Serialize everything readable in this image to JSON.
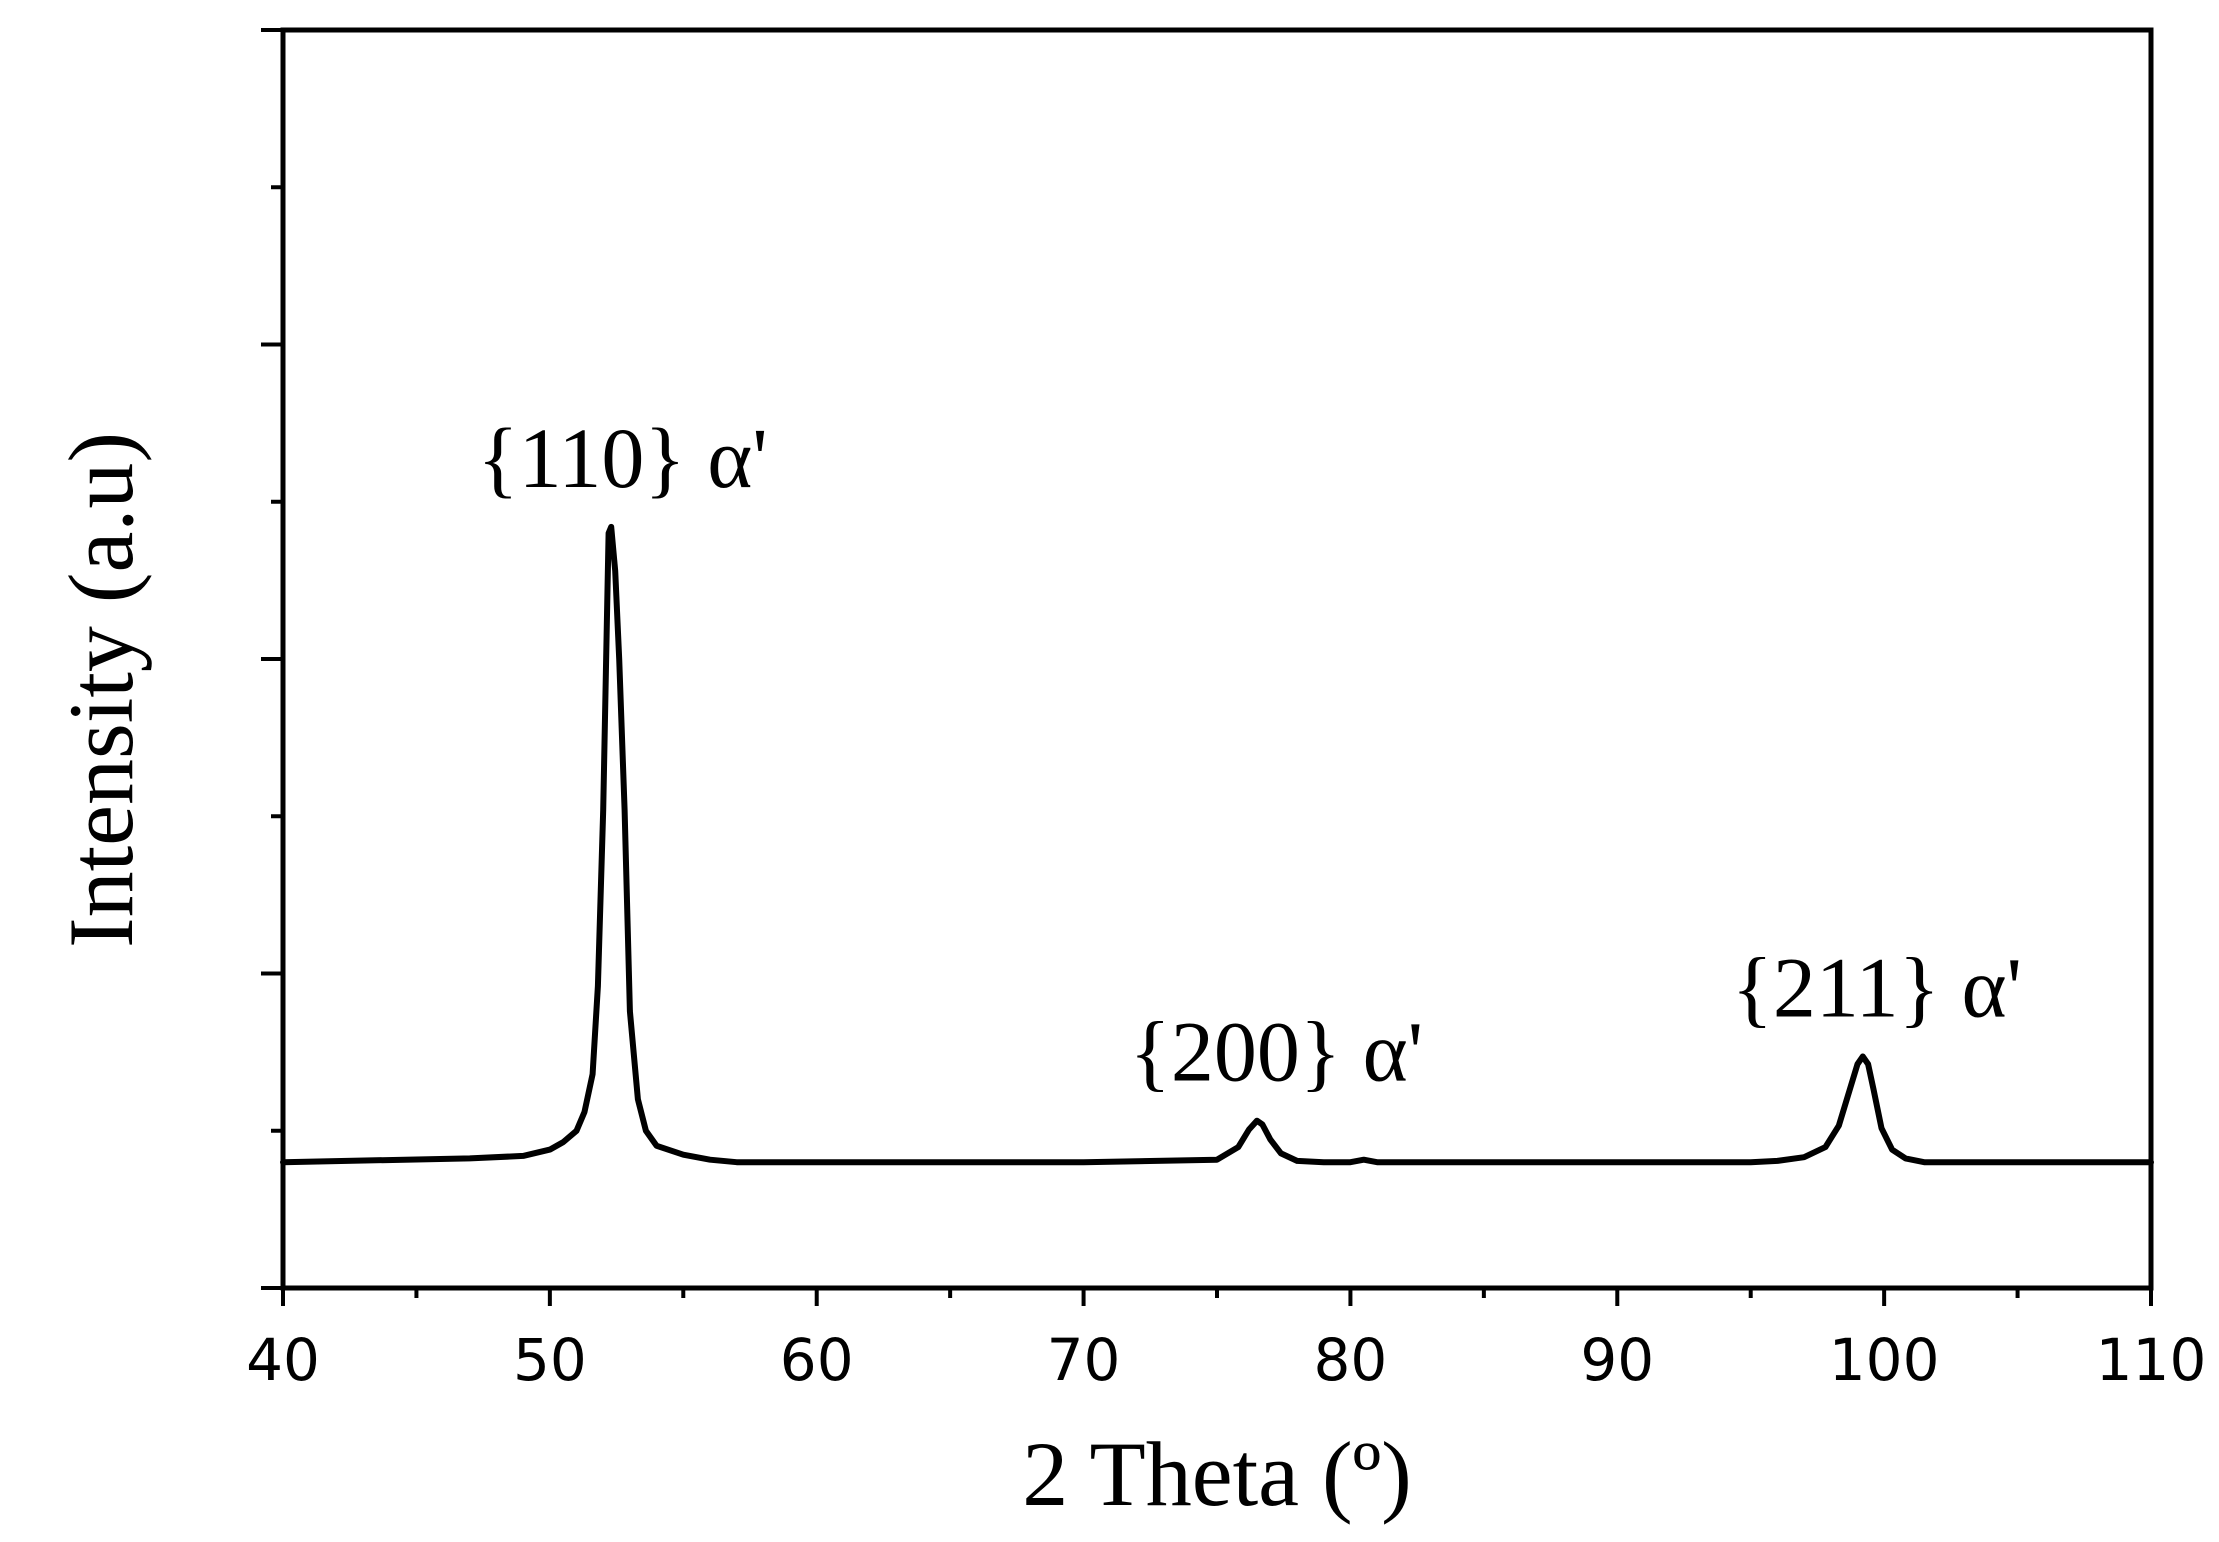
{
  "chart_data": {
    "type": "line",
    "title": "",
    "xlabel": "2 Theta (º)",
    "ylabel": "Intensity (a.u)",
    "xlim": [
      40,
      110
    ],
    "ylim": [
      0,
      100
    ],
    "x_ticks": [
      40,
      50,
      60,
      70,
      80,
      90,
      100,
      110
    ],
    "x_tick_labels": [
      "40",
      "50",
      "60",
      "70",
      "80",
      "90",
      "100",
      "110"
    ],
    "y_tick_labels_shown": false,
    "grid": false,
    "line_color": "#000000",
    "series": [
      {
        "x": [
          40,
          47,
          49,
          50,
          50.5,
          51,
          51.3,
          51.6,
          51.8,
          52.0,
          52.1,
          52.2,
          52.3,
          52.45,
          52.6,
          52.8,
          53.0,
          53.3,
          53.6,
          54,
          55,
          56,
          57,
          60,
          70,
          75,
          75.8,
          76.2,
          76.5,
          76.7,
          77.0,
          77.4,
          78,
          79,
          80,
          80.5,
          81,
          85,
          90,
          95,
          96,
          97,
          97.8,
          98.3,
          98.7,
          99.0,
          99.2,
          99.4,
          99.6,
          99.9,
          100.3,
          100.8,
          101.5,
          102.5,
          104,
          110
        ],
        "y": [
          10,
          10.3,
          10.5,
          11,
          11.6,
          12.5,
          14,
          17,
          24,
          38,
          49,
          60,
          60.5,
          57,
          50,
          38,
          22,
          15,
          12.5,
          11.3,
          10.6,
          10.2,
          10,
          10,
          10,
          10.2,
          11.2,
          12.6,
          13.3,
          13.0,
          11.8,
          10.7,
          10.1,
          10,
          10,
          10.2,
          10,
          10,
          10,
          10,
          10.1,
          10.4,
          11.2,
          12.9,
          15.7,
          17.8,
          18.4,
          17.8,
          15.8,
          12.7,
          11.0,
          10.3,
          10,
          10,
          10,
          10
        ]
      }
    ],
    "annotations": [
      {
        "text": "{110} α'",
        "x": 52.2,
        "y": 60.5
      },
      {
        "text": "{200} α'",
        "x": 76.7,
        "y": 13.3
      },
      {
        "text": "{211} α'",
        "x": 99.2,
        "y": 18.4
      }
    ]
  }
}
